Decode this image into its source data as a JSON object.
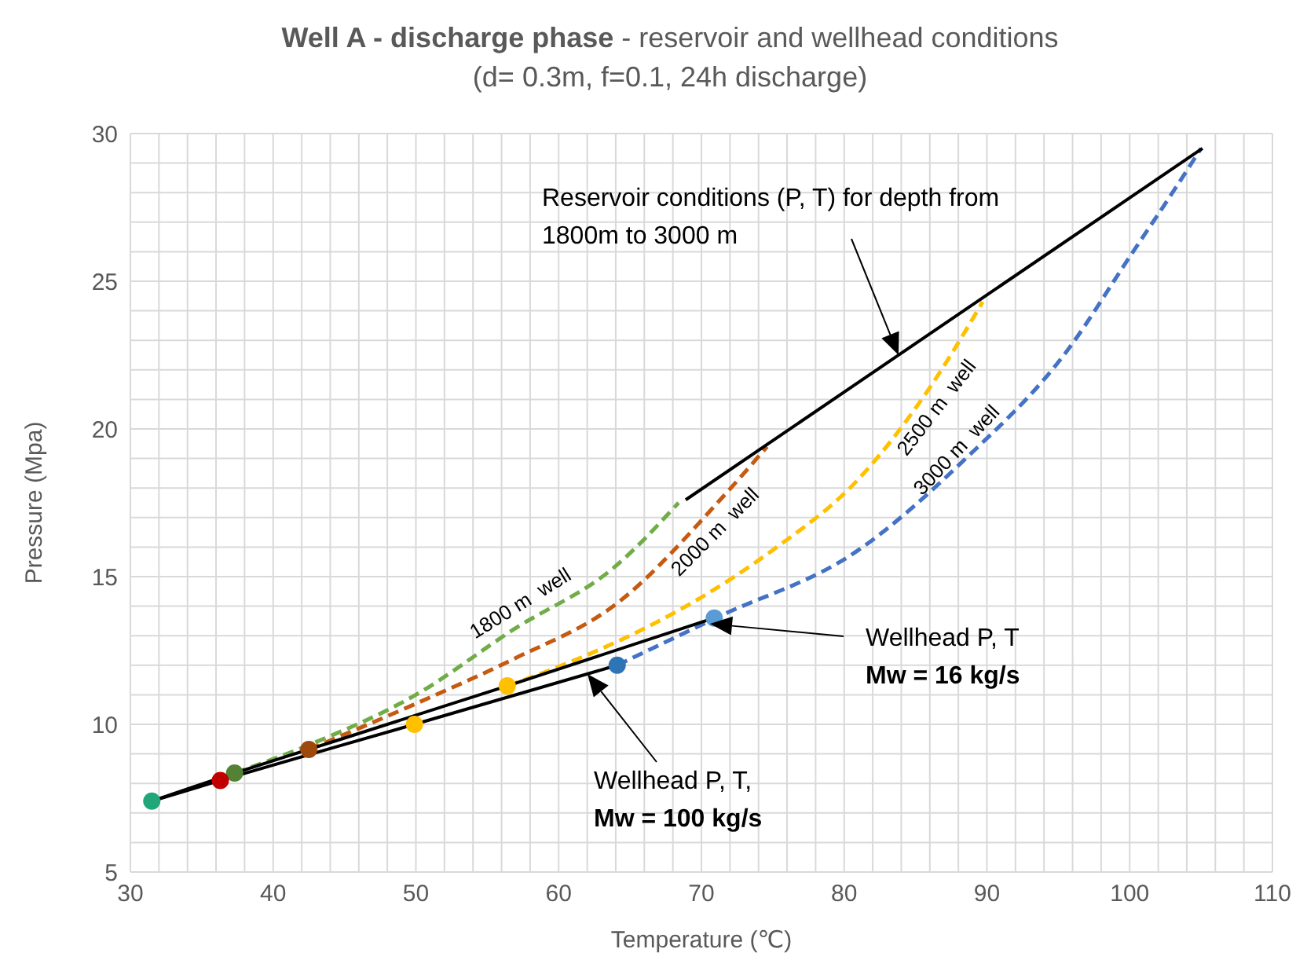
{
  "chart_data": {
    "type": "line",
    "title": "Well A - discharge phase - reservoir and wellhead conditions",
    "subtitle": "(d= 0.3m, f=0.1, 24h discharge)",
    "xlabel": "Temperature (℃)",
    "ylabel": "Pressure (Mpa)",
    "xlim": [
      30,
      110
    ],
    "xticks": [
      30,
      {
        "value": 32,
        "label": null
      },
      {
        "value": 34,
        "label": null
      },
      {
        "value": 36,
        "label": null
      },
      {
        "value": 38,
        "label": null
      },
      40,
      {
        "value": 42,
        "label": null
      },
      {
        "value": 44,
        "label": null
      },
      {
        "value": 46,
        "label": null
      },
      {
        "value": 48,
        "label": null
      },
      50,
      {
        "value": 52,
        "label": null
      },
      {
        "value": 54,
        "label": null
      },
      {
        "value": 56,
        "label": null
      },
      {
        "value": 58,
        "label": null
      },
      60,
      {
        "value": 62,
        "label": null
      },
      {
        "value": 64,
        "label": null
      },
      {
        "value": 66,
        "label": null
      },
      {
        "value": 68,
        "label": null
      },
      70,
      {
        "value": 72,
        "label": null
      },
      {
        "value": 74,
        "label": null
      },
      {
        "value": 76,
        "label": null
      },
      {
        "value": 78,
        "label": null
      },
      80,
      {
        "value": 82,
        "label": null
      },
      {
        "value": 84,
        "label": null
      },
      {
        "value": 86,
        "label": null
      },
      {
        "value": 88,
        "label": null
      },
      90,
      {
        "value": 92,
        "label": null
      },
      {
        "value": 94,
        "label": null
      },
      {
        "value": 96,
        "label": null
      },
      {
        "value": 98,
        "label": null
      },
      100,
      {
        "value": 102,
        "label": null
      },
      {
        "value": 104,
        "label": null
      },
      {
        "value": 106,
        "label": null
      },
      {
        "value": 108,
        "label": null
      },
      110
    ],
    "ylim": [
      5,
      30
    ],
    "yticks": [
      5,
      {
        "value": 6,
        "label": null
      },
      {
        "value": 7,
        "label": null
      },
      {
        "value": 8,
        "label": null
      },
      {
        "value": 9,
        "label": null
      },
      10,
      {
        "value": 11,
        "label": null
      },
      {
        "value": 12,
        "label": null
      },
      {
        "value": 13,
        "label": null
      },
      {
        "value": 14,
        "label": null
      },
      15,
      {
        "value": 16,
        "label": null
      },
      {
        "value": 17,
        "label": null
      },
      {
        "value": 18,
        "label": null
      },
      {
        "value": 19,
        "label": null
      },
      20,
      {
        "value": 21,
        "label": null
      },
      {
        "value": 22,
        "label": null
      },
      {
        "value": 23,
        "label": null
      },
      {
        "value": 24,
        "label": null
      },
      25,
      {
        "value": 26,
        "label": null
      },
      {
        "value": 27,
        "label": null
      },
      {
        "value": 28,
        "label": null
      },
      {
        "value": 29,
        "label": null
      },
      30
    ],
    "grid": true,
    "series": [
      {
        "name": "1800 m  well",
        "color": "#70ad47",
        "line_style": "dashed",
        "marker": "none",
        "x": [
          37.3,
          42.5,
          50,
          56.8,
          64.1,
          68.4
        ],
        "values": [
          8.35,
          9.3,
          11.0,
          13.2,
          15.4,
          17.5
        ]
      },
      {
        "name": "2000 m  well",
        "color": "#c55a11",
        "line_style": "dashed",
        "marker": "none",
        "x": [
          42.5,
          50,
          56.8,
          64.1,
          71.5,
          74.6
        ],
        "values": [
          9.15,
          10.7,
          12.2,
          14.1,
          17.7,
          19.4
        ]
      },
      {
        "name": "2500 m  well",
        "color": "#ffc000",
        "line_style": "dashed",
        "marker": "none",
        "x": [
          56.4,
          60,
          64.1,
          70,
          75,
          81,
          86,
          89.7
        ],
        "values": [
          11.3,
          11.95,
          12.8,
          14.3,
          15.9,
          18.3,
          21.4,
          24.3
        ]
      },
      {
        "name": "3000 m  well",
        "color": "#4472c4",
        "line_style": "dashed",
        "marker": "none",
        "x": [
          64.1,
          71,
          81,
          88.3,
          95.7,
          100.1,
          103,
          105
        ],
        "values": [
          12.0,
          13.6,
          15.9,
          18.9,
          22.7,
          25.9,
          28.0,
          29.5
        ]
      },
      {
        "color": "#000000",
        "line_style": "solid",
        "marker": "none",
        "x": [
          68.9,
          105.1
        ],
        "values": [
          17.6,
          29.5
        ]
      },
      {
        "color": "#000000",
        "line_style": "solid",
        "marker": "circle",
        "x": [
          31.5,
          37.3,
          42.5,
          56.4,
          70.9
        ],
        "values": [
          7.4,
          8.35,
          9.15,
          11.3,
          13.6
        ],
        "colors": [
          null,
          "#548235",
          "#9e480e",
          "#ffc000",
          "#5b9bd5"
        ]
      },
      {
        "color": "#000000",
        "line_style": "solid",
        "marker": "circle",
        "x": [
          31.5,
          36.3,
          49.9,
          64.1
        ],
        "values": [
          7.4,
          8.1,
          10.0,
          12.0
        ],
        "colors": [
          "#21a67a",
          "#c00000",
          "#ffc000",
          "#2e75b6"
        ]
      }
    ],
    "annotations": [
      "Reservoir conditions (P, T) for depth from\n1800m to 3000 m",
      "Wellhead P, T\nMw = 16 kg/s",
      "Wellhead P, T,\nMw = 100 kg/s"
    ]
  }
}
